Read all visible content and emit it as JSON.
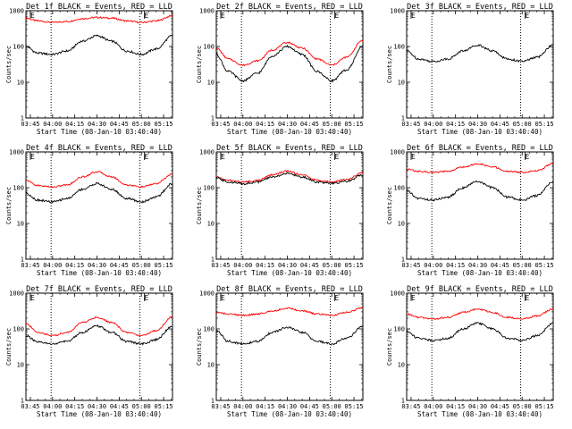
{
  "colors": {
    "events": "#000000",
    "lld": "#ff0000",
    "axes": "#000000",
    "background": "#ffffff"
  },
  "chart_data": [
    {
      "type": "line",
      "title": "Det 1f BLACK = Events, RED = LLD",
      "ylabel": "Counts/sec",
      "xlabel": "Start Time (08-Jan-10 03:40:40)",
      "x_tick_labels": [
        "03:45",
        "04:00",
        "04:15",
        "04:30",
        "04:45",
        "05:00",
        "05:15"
      ],
      "y_tick_labels": [
        "1",
        "10",
        "100",
        "1000"
      ],
      "y_scale": "log",
      "ylim": [
        1,
        1000
      ],
      "xlim": [
        "03:42",
        "05:21"
      ],
      "vertical_markers": [
        {
          "time": "03:59",
          "label": "",
          "style": "dotted"
        },
        {
          "time": "04:59",
          "label": "",
          "style": "dotted"
        }
      ],
      "flag_labels": [
        {
          "time": "03:45",
          "label": "E"
        },
        {
          "time": "05:02",
          "label": "E"
        }
      ],
      "series": [
        {
          "color": "red",
          "x": [
            "03:42",
            "03:50",
            "04:00",
            "04:10",
            "04:20",
            "04:30",
            "04:40",
            "04:50",
            "05:00",
            "05:10",
            "05:21"
          ],
          "y": [
            620,
            520,
            470,
            500,
            600,
            650,
            620,
            520,
            470,
            520,
            720
          ]
        },
        {
          "color": "black",
          "x": [
            "03:42",
            "03:50",
            "04:00",
            "04:10",
            "04:20",
            "04:30",
            "04:40",
            "04:50",
            "05:00",
            "05:10",
            "05:21"
          ],
          "y": [
            100,
            65,
            60,
            75,
            140,
            200,
            140,
            75,
            60,
            85,
            200
          ]
        }
      ]
    },
    {
      "type": "line",
      "title": "Det 2f BLACK = Events, RED = LLD",
      "ylabel": "Counts/sec",
      "xlabel": "Start Time (08-Jan-10 03:40:40)",
      "x_tick_labels": [
        "03:45",
        "04:00",
        "04:15",
        "04:30",
        "04:45",
        "05:00",
        "05:15"
      ],
      "y_tick_labels": [
        "1",
        "10",
        "100",
        "1000"
      ],
      "y_scale": "log",
      "ylim": [
        1,
        1000
      ],
      "xlim": [
        "03:42",
        "05:21"
      ],
      "vertical_markers": [
        {
          "time": "03:59",
          "label": "",
          "style": "dotted"
        },
        {
          "time": "04:59",
          "label": "",
          "style": "dotted"
        }
      ],
      "flag_labels": [
        {
          "time": "03:45",
          "label": "E"
        },
        {
          "time": "05:02",
          "label": "E"
        }
      ],
      "series": [
        {
          "color": "red",
          "x": [
            "03:42",
            "03:50",
            "04:00",
            "04:10",
            "04:20",
            "04:30",
            "04:40",
            "04:50",
            "05:00",
            "05:10",
            "05:21"
          ],
          "y": [
            90,
            45,
            30,
            40,
            80,
            130,
            90,
            45,
            30,
            50,
            150
          ]
        },
        {
          "color": "black",
          "x": [
            "03:42",
            "03:50",
            "04:00",
            "04:10",
            "04:20",
            "04:30",
            "04:40",
            "04:50",
            "05:00",
            "05:10",
            "05:21"
          ],
          "y": [
            60,
            20,
            11,
            18,
            55,
            100,
            60,
            20,
            11,
            22,
            100
          ]
        }
      ]
    },
    {
      "type": "line",
      "title": "Det 3f BLACK = Events, RED = LLD",
      "ylabel": "Counts/sec",
      "xlabel": "Start Time (08-Jan-10 03:40:40)",
      "x_tick_labels": [
        "03:45",
        "04:00",
        "04:15",
        "04:30",
        "04:45",
        "05:00",
        "05:15"
      ],
      "y_tick_labels": [
        "1",
        "10",
        "100",
        "1000"
      ],
      "y_scale": "log",
      "ylim": [
        1,
        1000
      ],
      "xlim": [
        "03:42",
        "05:21"
      ],
      "vertical_markers": [
        {
          "time": "03:59",
          "label": "",
          "style": "dotted"
        },
        {
          "time": "04:59",
          "label": "",
          "style": "dotted"
        }
      ],
      "flag_labels": [
        {
          "time": "03:45",
          "label": "E"
        },
        {
          "time": "05:02",
          "label": "E"
        }
      ],
      "series": [
        {
          "color": "black",
          "x": [
            "03:42",
            "03:50",
            "04:00",
            "04:10",
            "04:20",
            "04:30",
            "04:40",
            "04:50",
            "05:00",
            "05:10",
            "05:21"
          ],
          "y": [
            75,
            45,
            38,
            45,
            75,
            110,
            75,
            45,
            38,
            50,
            110
          ]
        }
      ]
    },
    {
      "type": "line",
      "title": "Det 4f BLACK = Events, RED = LLD",
      "ylabel": "Counts/sec",
      "xlabel": "Start Time (08-Jan-10 03:40:40)",
      "x_tick_labels": [
        "03:45",
        "04:00",
        "04:15",
        "04:30",
        "04:45",
        "05:00",
        "05:15"
      ],
      "y_tick_labels": [
        "1",
        "10",
        "100",
        "1000"
      ],
      "y_scale": "log",
      "ylim": [
        1,
        1000
      ],
      "xlim": [
        "03:42",
        "05:21"
      ],
      "vertical_markers": [
        {
          "time": "03:59",
          "label": "",
          "style": "dotted"
        },
        {
          "time": "04:59",
          "label": "",
          "style": "dotted"
        }
      ],
      "flag_labels": [
        {
          "time": "03:45",
          "label": "E"
        },
        {
          "time": "05:02",
          "label": "E"
        }
      ],
      "series": [
        {
          "color": "red",
          "x": [
            "03:42",
            "03:50",
            "04:00",
            "04:10",
            "04:20",
            "04:30",
            "04:40",
            "04:50",
            "05:00",
            "05:10",
            "05:21"
          ],
          "y": [
            160,
            115,
            105,
            120,
            200,
            280,
            200,
            120,
            105,
            130,
            240
          ]
        },
        {
          "color": "black",
          "x": [
            "03:42",
            "03:50",
            "04:00",
            "04:10",
            "04:20",
            "04:30",
            "04:40",
            "04:50",
            "05:00",
            "05:10",
            "05:21"
          ],
          "y": [
            70,
            45,
            40,
            50,
            90,
            130,
            90,
            50,
            40,
            55,
            130
          ]
        }
      ]
    },
    {
      "type": "line",
      "title": "Det 5f BLACK = Events, RED = LLD",
      "ylabel": "Counts/sec",
      "xlabel": "Start Time (08-Jan-10 03:40:40)",
      "x_tick_labels": [
        "03:45",
        "04:00",
        "04:15",
        "04:30",
        "04:45",
        "05:00",
        "05:15"
      ],
      "y_tick_labels": [
        "1",
        "10",
        "100",
        "1000"
      ],
      "y_scale": "log",
      "ylim": [
        1,
        1000
      ],
      "xlim": [
        "03:42",
        "05:21"
      ],
      "vertical_markers": [
        {
          "time": "03:59",
          "label": "",
          "style": "dotted"
        },
        {
          "time": "04:59",
          "label": "",
          "style": "dotted"
        }
      ],
      "flag_labels": [
        {
          "time": "03:45",
          "label": "E"
        },
        {
          "time": "05:02",
          "label": "E"
        }
      ],
      "series": [
        {
          "color": "red",
          "x": [
            "03:42",
            "03:50",
            "04:00",
            "04:10",
            "04:20",
            "04:30",
            "04:40",
            "04:50",
            "05:00",
            "05:10",
            "05:21"
          ],
          "y": [
            200,
            160,
            145,
            160,
            230,
            290,
            230,
            160,
            145,
            170,
            260
          ]
        },
        {
          "color": "black",
          "x": [
            "03:42",
            "03:50",
            "04:00",
            "04:10",
            "04:20",
            "04:30",
            "04:40",
            "04:50",
            "05:00",
            "05:10",
            "05:21"
          ],
          "y": [
            185,
            145,
            130,
            145,
            200,
            250,
            200,
            145,
            130,
            150,
            230
          ]
        }
      ]
    },
    {
      "type": "line",
      "title": "Det 6f BLACK = Events, RED = LLD",
      "ylabel": "Counts/sec",
      "xlabel": "Start Time (08-Jan-10 03:40:40)",
      "x_tick_labels": [
        "03:45",
        "04:00",
        "04:15",
        "04:30",
        "04:45",
        "05:00",
        "05:15"
      ],
      "y_tick_labels": [
        "1",
        "10",
        "100",
        "1000"
      ],
      "y_scale": "log",
      "ylim": [
        1,
        1000
      ],
      "xlim": [
        "03:42",
        "05:21"
      ],
      "vertical_markers": [
        {
          "time": "03:59",
          "label": "",
          "style": "dotted"
        },
        {
          "time": "04:59",
          "label": "",
          "style": "dotted"
        }
      ],
      "flag_labels": [
        {
          "time": "03:45",
          "label": "E"
        },
        {
          "time": "05:02",
          "label": "E"
        }
      ],
      "series": [
        {
          "color": "red",
          "x": [
            "03:42",
            "03:50",
            "04:00",
            "04:10",
            "04:20",
            "04:30",
            "04:40",
            "04:50",
            "05:00",
            "05:10",
            "05:21"
          ],
          "y": [
            330,
            285,
            270,
            285,
            380,
            460,
            380,
            285,
            270,
            300,
            470
          ]
        },
        {
          "color": "black",
          "x": [
            "03:42",
            "03:50",
            "04:00",
            "04:10",
            "04:20",
            "04:30",
            "04:40",
            "04:50",
            "05:00",
            "05:10",
            "05:21"
          ],
          "y": [
            80,
            50,
            45,
            55,
            100,
            150,
            100,
            55,
            45,
            60,
            150
          ]
        }
      ]
    },
    {
      "type": "line",
      "title": "Det 7f BLACK = Events, RED = LLD",
      "ylabel": "Counts/sec",
      "xlabel": "Start Time (08-Jan-10 03:40:40)",
      "x_tick_labels": [
        "03:45",
        "04:00",
        "04:15",
        "04:30",
        "04:45",
        "05:00",
        "05:15"
      ],
      "y_tick_labels": [
        "1",
        "10",
        "100",
        "1000"
      ],
      "y_scale": "log",
      "ylim": [
        1,
        1000
      ],
      "xlim": [
        "03:42",
        "05:21"
      ],
      "vertical_markers": [
        {
          "time": "03:59",
          "label": "",
          "style": "dotted"
        },
        {
          "time": "04:59",
          "label": "",
          "style": "dotted"
        }
      ],
      "flag_labels": [
        {
          "time": "03:45",
          "label": "E"
        },
        {
          "time": "05:02",
          "label": "E"
        }
      ],
      "series": [
        {
          "color": "red",
          "x": [
            "03:42",
            "03:50",
            "04:00",
            "04:10",
            "04:20",
            "04:30",
            "04:40",
            "04:50",
            "05:00",
            "05:10",
            "05:21"
          ],
          "y": [
            140,
            80,
            65,
            80,
            150,
            210,
            150,
            80,
            65,
            90,
            220
          ]
        },
        {
          "color": "black",
          "x": [
            "03:42",
            "03:50",
            "04:00",
            "04:10",
            "04:20",
            "04:30",
            "04:40",
            "04:50",
            "05:00",
            "05:10",
            "05:21"
          ],
          "y": [
            65,
            42,
            38,
            45,
            80,
            120,
            80,
            45,
            38,
            50,
            120
          ]
        }
      ]
    },
    {
      "type": "line",
      "title": "Det 8f BLACK = Events, RED = LLD",
      "ylabel": "Counts/sec",
      "xlabel": "Start Time (08-Jan-10 03:40:40)",
      "x_tick_labels": [
        "03:45",
        "04:00",
        "04:15",
        "04:30",
        "04:45",
        "05:00",
        "05:15"
      ],
      "y_tick_labels": [
        "1",
        "10",
        "100",
        "1000"
      ],
      "y_scale": "log",
      "ylim": [
        1,
        1000
      ],
      "xlim": [
        "03:42",
        "05:21"
      ],
      "vertical_markers": [
        {
          "time": "03:59",
          "label": "",
          "style": "dotted"
        },
        {
          "time": "04:59",
          "label": "",
          "style": "dotted"
        }
      ],
      "flag_labels": [
        {
          "time": "03:45",
          "label": "E"
        },
        {
          "time": "05:02",
          "label": "E"
        }
      ],
      "series": [
        {
          "color": "red",
          "x": [
            "03:42",
            "03:50",
            "04:00",
            "04:10",
            "04:20",
            "04:30",
            "04:40",
            "04:50",
            "05:00",
            "05:10",
            "05:21"
          ],
          "y": [
            290,
            260,
            240,
            260,
            320,
            380,
            320,
            260,
            240,
            290,
            390
          ]
        },
        {
          "color": "black",
          "x": [
            "03:42",
            "03:50",
            "04:00",
            "04:10",
            "04:20",
            "04:30",
            "04:40",
            "04:50",
            "05:00",
            "05:10",
            "05:21"
          ],
          "y": [
            90,
            45,
            38,
            45,
            80,
            110,
            80,
            45,
            38,
            55,
            120
          ]
        }
      ]
    },
    {
      "type": "line",
      "title": "Det 9f BLACK = Events, RED = LLD",
      "ylabel": "Counts/sec",
      "xlabel": "Start Time (08-Jan-10 03:40:40)",
      "x_tick_labels": [
        "03:45",
        "04:00",
        "04:15",
        "04:30",
        "04:45",
        "05:00",
        "05:15"
      ],
      "y_tick_labels": [
        "1",
        "10",
        "100",
        "1000"
      ],
      "y_scale": "log",
      "ylim": [
        1,
        1000
      ],
      "xlim": [
        "03:42",
        "05:21"
      ],
      "vertical_markers": [
        {
          "time": "03:59",
          "label": "",
          "style": "dotted"
        },
        {
          "time": "04:59",
          "label": "",
          "style": "dotted"
        }
      ],
      "flag_labels": [
        {
          "time": "03:45",
          "label": "E"
        },
        {
          "time": "05:02",
          "label": "E"
        }
      ],
      "series": [
        {
          "color": "red",
          "x": [
            "03:42",
            "03:50",
            "04:00",
            "04:10",
            "04:20",
            "04:30",
            "04:40",
            "04:50",
            "05:00",
            "05:10",
            "05:21"
          ],
          "y": [
            260,
            210,
            190,
            210,
            290,
            360,
            290,
            210,
            190,
            230,
            360
          ]
        },
        {
          "color": "black",
          "x": [
            "03:42",
            "03:50",
            "04:00",
            "04:10",
            "04:20",
            "04:30",
            "04:40",
            "04:50",
            "05:00",
            "05:10",
            "05:21"
          ],
          "y": [
            85,
            55,
            48,
            55,
            100,
            145,
            100,
            55,
            48,
            65,
            145
          ]
        }
      ]
    }
  ]
}
